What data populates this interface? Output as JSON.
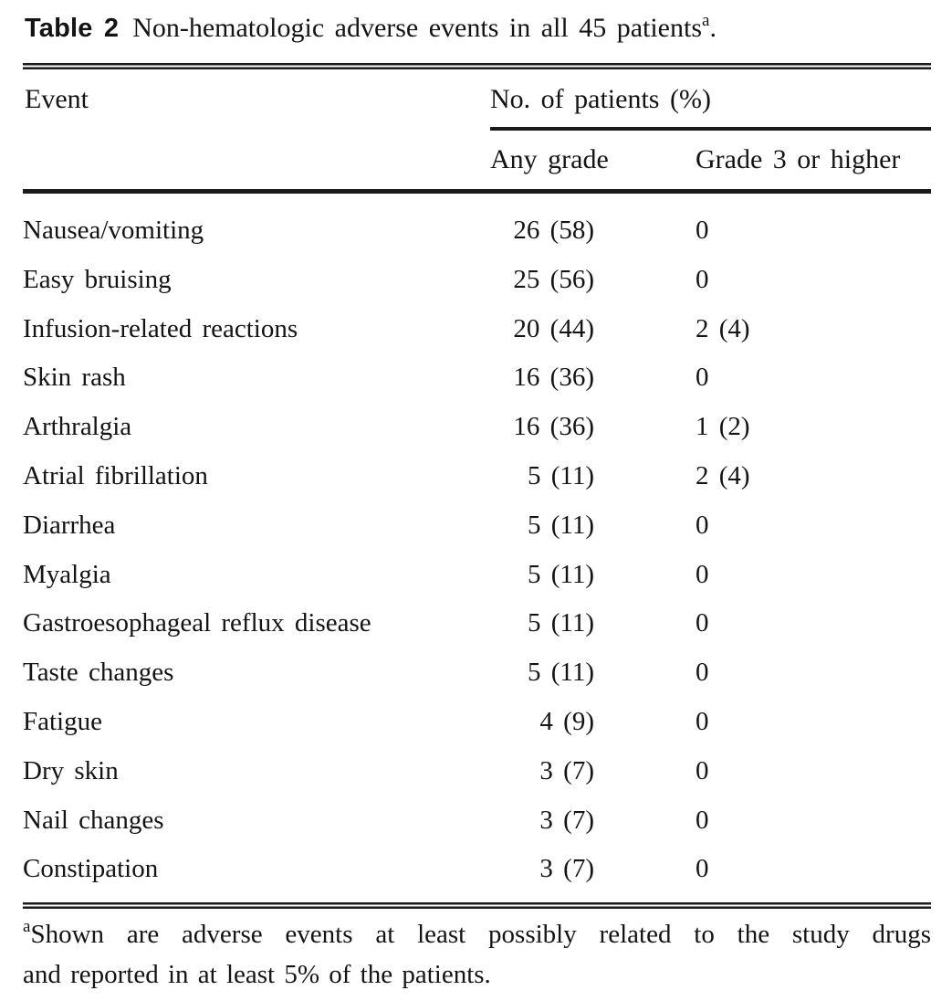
{
  "title": {
    "label": "Table 2",
    "text": "Non-hematologic adverse events in all 45 patients",
    "superscript": "a",
    "suffix": "."
  },
  "table": {
    "columns": {
      "event_header": "Event",
      "group_header": "No. of patients (%)",
      "any_grade_header": "Any grade",
      "grade3_header": "Grade 3 or higher"
    },
    "rows": [
      {
        "event": "Nausea/vomiting",
        "any_grade": "26 (58)",
        "grade3_or_higher": "0"
      },
      {
        "event": "Easy bruising",
        "any_grade": "25 (56)",
        "grade3_or_higher": "0"
      },
      {
        "event": "Infusion-related reactions",
        "any_grade": "20 (44)",
        "grade3_or_higher": "2 (4)"
      },
      {
        "event": "Skin rash",
        "any_grade": "16 (36)",
        "grade3_or_higher": "0"
      },
      {
        "event": "Arthralgia",
        "any_grade": "16 (36)",
        "grade3_or_higher": "1 (2)"
      },
      {
        "event": "Atrial fibrillation",
        "any_grade": "5 (11)",
        "grade3_or_higher": "2 (4)"
      },
      {
        "event": "Diarrhea",
        "any_grade": "5 (11)",
        "grade3_or_higher": "0"
      },
      {
        "event": "Myalgia",
        "any_grade": "5 (11)",
        "grade3_or_higher": "0"
      },
      {
        "event": "Gastroesophageal reflux disease",
        "any_grade": "5 (11)",
        "grade3_or_higher": "0"
      },
      {
        "event": "Taste changes",
        "any_grade": "5 (11)",
        "grade3_or_higher": "0"
      },
      {
        "event": "Fatigue",
        "any_grade": "4 (9)",
        "grade3_or_higher": "0"
      },
      {
        "event": "Dry skin",
        "any_grade": "3 (7)",
        "grade3_or_higher": "0"
      },
      {
        "event": "Nail changes",
        "any_grade": "3 (7)",
        "grade3_or_higher": "0"
      },
      {
        "event": "Constipation",
        "any_grade": "3 (7)",
        "grade3_or_higher": "0"
      }
    ]
  },
  "footnote": {
    "marker": "a",
    "line1": "Shown are adverse events at least possibly related to the study drugs",
    "line2": "and reported in at least 5% of the patients.",
    "full_text": "Shown are adverse events at least possibly related to the study drugs and reported in at least 5% of the patients."
  }
}
